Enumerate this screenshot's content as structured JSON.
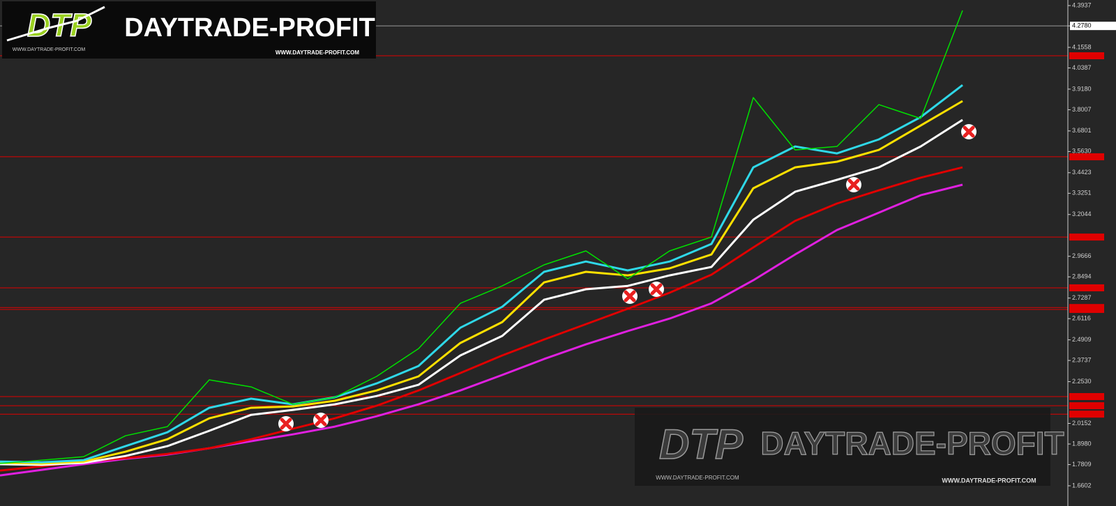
{
  "chart_data": {
    "type": "line",
    "ylim": [
      1.5451,
      4.4254
    ],
    "yticks": [
      4.3937,
      {
        "value": 4.278,
        "label": "4.2780"
      },
      4.1558,
      4.0387,
      {
        "value": 3.918,
        "label": "3.9180"
      },
      3.8007,
      3.6801,
      {
        "value": 3.563,
        "label": "3.5630"
      },
      3.4423,
      3.3251,
      3.2044,
      2.9666,
      2.8494,
      2.7287,
      2.6116,
      2.4909,
      2.3737,
      {
        "value": 2.253,
        "label": "2.2530"
      },
      2.0152,
      {
        "value": 1.898,
        "label": "1.8980"
      },
      1.7809,
      1.6602
    ],
    "current_price": 4.278,
    "levels": [
      4.108,
      3.533,
      3.076,
      2.787,
      2.675,
      2.664,
      2.168,
      2.116,
      2.068
    ],
    "level_color": "#e00000",
    "grid": false,
    "series": [
      {
        "color": "#00e000",
        "width": 1.5,
        "values": [
          1.787,
          1.806,
          1.826,
          1.945,
          1.997,
          2.263,
          2.223,
          2.124,
          2.164,
          2.283,
          2.441,
          2.699,
          2.798,
          2.918,
          2.997,
          2.838,
          2.997,
          3.076,
          3.87,
          3.572,
          3.592,
          3.83,
          3.751,
          4.366
        ]
      },
      {
        "color": "#2fd8e8",
        "width": 3,
        "values": [
          1.798,
          1.794,
          1.806,
          1.886,
          1.965,
          2.104,
          2.156,
          2.124,
          2.164,
          2.243,
          2.342,
          2.56,
          2.679,
          2.878,
          2.937,
          2.886,
          2.937,
          3.037,
          3.473,
          3.592,
          3.552,
          3.632,
          3.759,
          3.941
        ]
      },
      {
        "color": "#ffe000",
        "width": 3,
        "values": [
          1.791,
          1.787,
          1.798,
          1.854,
          1.925,
          2.044,
          2.104,
          2.112,
          2.144,
          2.203,
          2.283,
          2.473,
          2.592,
          2.818,
          2.878,
          2.858,
          2.898,
          2.977,
          3.354,
          3.473,
          3.505,
          3.572,
          3.711,
          3.85
        ]
      },
      {
        "color": "#ffffff",
        "width": 3,
        "values": [
          1.783,
          1.779,
          1.791,
          1.83,
          1.886,
          1.973,
          2.064,
          2.092,
          2.124,
          2.171,
          2.235,
          2.402,
          2.513,
          2.719,
          2.779,
          2.798,
          2.858,
          2.906,
          3.175,
          3.334,
          3.402,
          3.473,
          3.592,
          3.743
        ]
      },
      {
        "color": "#e00000",
        "width": 3,
        "values": [
          1.747,
          1.771,
          1.798,
          1.818,
          1.842,
          1.874,
          1.925,
          1.985,
          2.044,
          2.116,
          2.203,
          2.302,
          2.402,
          2.493,
          2.58,
          2.668,
          2.759,
          2.862,
          3.017,
          3.168,
          3.267,
          3.342,
          3.414,
          3.473
        ]
      },
      {
        "color": "#e020e0",
        "width": 3,
        "values": [
          1.719,
          1.751,
          1.783,
          1.814,
          1.838,
          1.874,
          1.914,
          1.953,
          1.997,
          2.056,
          2.124,
          2.203,
          2.291,
          2.382,
          2.465,
          2.541,
          2.612,
          2.699,
          2.83,
          2.977,
          3.116,
          3.215,
          3.314,
          3.374
        ]
      }
    ]
  },
  "branding": {
    "mark": "DTP",
    "name": "DAYTRADE-PROFIT",
    "url": "WWW.DAYTRADE-PROFIT.COM"
  }
}
